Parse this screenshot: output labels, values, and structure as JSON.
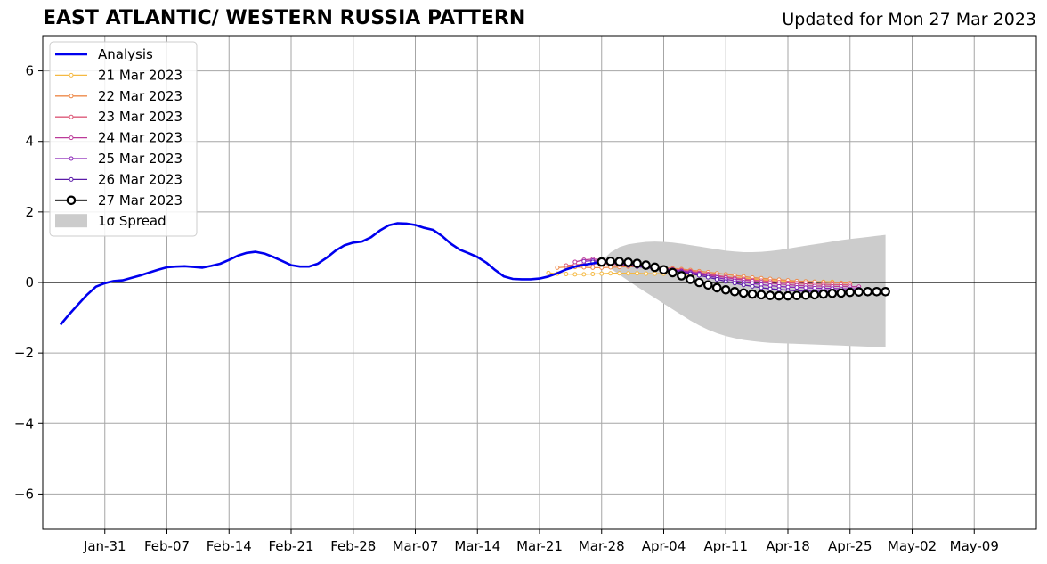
{
  "chart_data": {
    "type": "line",
    "title": "EAST ATLANTIC/ WESTERN RUSSIA PATTERN",
    "subtitle": "Updated for Mon 27 Mar 2023",
    "xlabel": "",
    "ylabel": "",
    "xlim": [
      "2023-01-24",
      "2023-05-16"
    ],
    "ylim": [
      -7,
      7
    ],
    "grid": true,
    "legend_position": "upper left",
    "x_ticks": [
      "2023-01-31",
      "2023-02-07",
      "2023-02-14",
      "2023-02-21",
      "2023-02-28",
      "2023-03-07",
      "2023-03-14",
      "2023-03-21",
      "2023-03-28",
      "2023-04-04",
      "2023-04-11",
      "2023-04-18",
      "2023-04-25",
      "2023-05-02",
      "2023-05-09"
    ],
    "x_tick_labels": [
      "Jan-31",
      "Feb-07",
      "Feb-14",
      "Feb-21",
      "Feb-28",
      "Mar-07",
      "Mar-14",
      "Mar-21",
      "Mar-28",
      "Apr-04",
      "Apr-11",
      "Apr-18",
      "Apr-25",
      "May-02",
      "May-09"
    ],
    "y_ticks": [
      -6,
      -4,
      -2,
      0,
      2,
      4,
      6
    ],
    "y_tick_labels": [
      "−6",
      "−4",
      "−2",
      "0",
      "2",
      "4",
      "6"
    ],
    "analysis": {
      "name": "Analysis",
      "color": "#0000ee",
      "start_date": "2023-01-26",
      "values": [
        -1.2,
        -0.9,
        -0.62,
        -0.35,
        -0.12,
        -0.02,
        0.04,
        0.06,
        0.13,
        0.2,
        0.28,
        0.36,
        0.43,
        0.45,
        0.46,
        0.44,
        0.42,
        0.47,
        0.53,
        0.64,
        0.76,
        0.84,
        0.87,
        0.82,
        0.72,
        0.61,
        0.49,
        0.45,
        0.45,
        0.53,
        0.7,
        0.9,
        1.05,
        1.13,
        1.16,
        1.28,
        1.47,
        1.62,
        1.68,
        1.67,
        1.63,
        1.55,
        1.49,
        1.32,
        1.1,
        0.93,
        0.83,
        0.72,
        0.56,
        0.35,
        0.17,
        0.1,
        0.09,
        0.09,
        0.11,
        0.17,
        0.26,
        0.37,
        0.45,
        0.5,
        0.54,
        0.58,
        0.6
      ]
    },
    "forecasts": [
      {
        "name": "21 Mar 2023",
        "color": "#f5b942",
        "start_date": "2023-03-22",
        "values": [
          0.27,
          0.25,
          0.24,
          0.23,
          0.23,
          0.24,
          0.25,
          0.26,
          0.26,
          0.26,
          0.26,
          0.25,
          0.25,
          0.25,
          0.24,
          0.23,
          0.22,
          0.21,
          0.2,
          0.18,
          0.16,
          0.14,
          0.12,
          0.1,
          0.08,
          0.06,
          0.05,
          0.04,
          0.03,
          0.03,
          0.02,
          0.02,
          0.02
        ]
      },
      {
        "name": "22 Mar 2023",
        "color": "#ee8a4a",
        "start_date": "2023-03-23",
        "values": [
          0.42,
          0.44,
          0.44,
          0.43,
          0.42,
          0.42,
          0.43,
          0.44,
          0.45,
          0.45,
          0.44,
          0.43,
          0.42,
          0.4,
          0.38,
          0.35,
          0.32,
          0.29,
          0.26,
          0.23,
          0.2,
          0.17,
          0.14,
          0.12,
          0.1,
          0.08,
          0.06,
          0.04,
          0.03,
          0.02,
          0.01,
          0.0,
          -0.01,
          -0.02
        ]
      },
      {
        "name": "23 Mar 2023",
        "color": "#dd5a78",
        "start_date": "2023-03-24",
        "values": [
          0.48,
          0.5,
          0.52,
          0.53,
          0.53,
          0.52,
          0.5,
          0.48,
          0.46,
          0.45,
          0.43,
          0.41,
          0.38,
          0.35,
          0.32,
          0.28,
          0.24,
          0.2,
          0.16,
          0.13,
          0.1,
          0.07,
          0.05,
          0.03,
          0.01,
          -0.01,
          -0.02,
          -0.03,
          -0.04,
          -0.05,
          -0.06,
          -0.06,
          -0.07
        ]
      },
      {
        "name": "24 Mar 2023",
        "color": "#bb3a99",
        "start_date": "2023-03-25",
        "values": [
          0.58,
          0.64,
          0.66,
          0.65,
          0.62,
          0.58,
          0.54,
          0.5,
          0.46,
          0.42,
          0.39,
          0.36,
          0.33,
          0.3,
          0.26,
          0.22,
          0.18,
          0.14,
          0.1,
          0.07,
          0.04,
          0.01,
          -0.02,
          -0.04,
          -0.06,
          -0.08,
          -0.09,
          -0.1,
          -0.1,
          -0.11,
          -0.11,
          -0.12,
          -0.12
        ]
      },
      {
        "name": "25 Mar 2023",
        "color": "#8a24b8",
        "start_date": "2023-03-26",
        "values": [
          0.6,
          0.62,
          0.6,
          0.57,
          0.54,
          0.51,
          0.48,
          0.45,
          0.42,
          0.39,
          0.36,
          0.32,
          0.28,
          0.24,
          0.19,
          0.14,
          0.09,
          0.05,
          0.01,
          -0.03,
          -0.06,
          -0.09,
          -0.11,
          -0.13,
          -0.14,
          -0.15,
          -0.16,
          -0.17,
          -0.17,
          -0.18,
          -0.18,
          -0.18
        ]
      },
      {
        "name": "26 Mar 2023",
        "color": "#5a1aa8",
        "start_date": "2023-03-27",
        "values": [
          0.58,
          0.57,
          0.55,
          0.52,
          0.48,
          0.45,
          0.42,
          0.39,
          0.36,
          0.33,
          0.29,
          0.25,
          0.2,
          0.15,
          0.09,
          0.03,
          -0.02,
          -0.07,
          -0.11,
          -0.15,
          -0.18,
          -0.2,
          -0.22,
          -0.24,
          -0.25,
          -0.25,
          -0.26,
          -0.26,
          -0.26,
          -0.26,
          -0.26
        ]
      }
    ],
    "forecast_current": {
      "name": "27 Mar 2023",
      "color": "#000000",
      "start_date": "2023-03-28",
      "values": [
        0.58,
        0.6,
        0.59,
        0.57,
        0.54,
        0.49,
        0.43,
        0.36,
        0.28,
        0.19,
        0.09,
        0.0,
        -0.07,
        -0.15,
        -0.21,
        -0.26,
        -0.3,
        -0.33,
        -0.35,
        -0.37,
        -0.38,
        -0.38,
        -0.37,
        -0.36,
        -0.35,
        -0.33,
        -0.31,
        -0.3,
        -0.28,
        -0.27,
        -0.26,
        -0.26,
        -0.26
      ]
    },
    "spread": {
      "name": "1σ Spread",
      "color": "#cccccc",
      "start_date": "2023-03-28",
      "upper": [
        0.6,
        0.85,
        1.0,
        1.08,
        1.12,
        1.15,
        1.16,
        1.15,
        1.13,
        1.1,
        1.06,
        1.02,
        0.98,
        0.94,
        0.9,
        0.88,
        0.86,
        0.86,
        0.87,
        0.89,
        0.92,
        0.96,
        1.0,
        1.04,
        1.08,
        1.12,
        1.16,
        1.2,
        1.23,
        1.26,
        1.29,
        1.32,
        1.35
      ],
      "lower": [
        0.6,
        0.4,
        0.22,
        0.05,
        -0.12,
        -0.28,
        -0.44,
        -0.6,
        -0.76,
        -0.92,
        -1.08,
        -1.22,
        -1.34,
        -1.44,
        -1.52,
        -1.58,
        -1.63,
        -1.66,
        -1.69,
        -1.71,
        -1.72,
        -1.73,
        -1.74,
        -1.75,
        -1.76,
        -1.77,
        -1.78,
        -1.79,
        -1.8,
        -1.81,
        -1.82,
        -1.83,
        -1.84
      ]
    }
  }
}
